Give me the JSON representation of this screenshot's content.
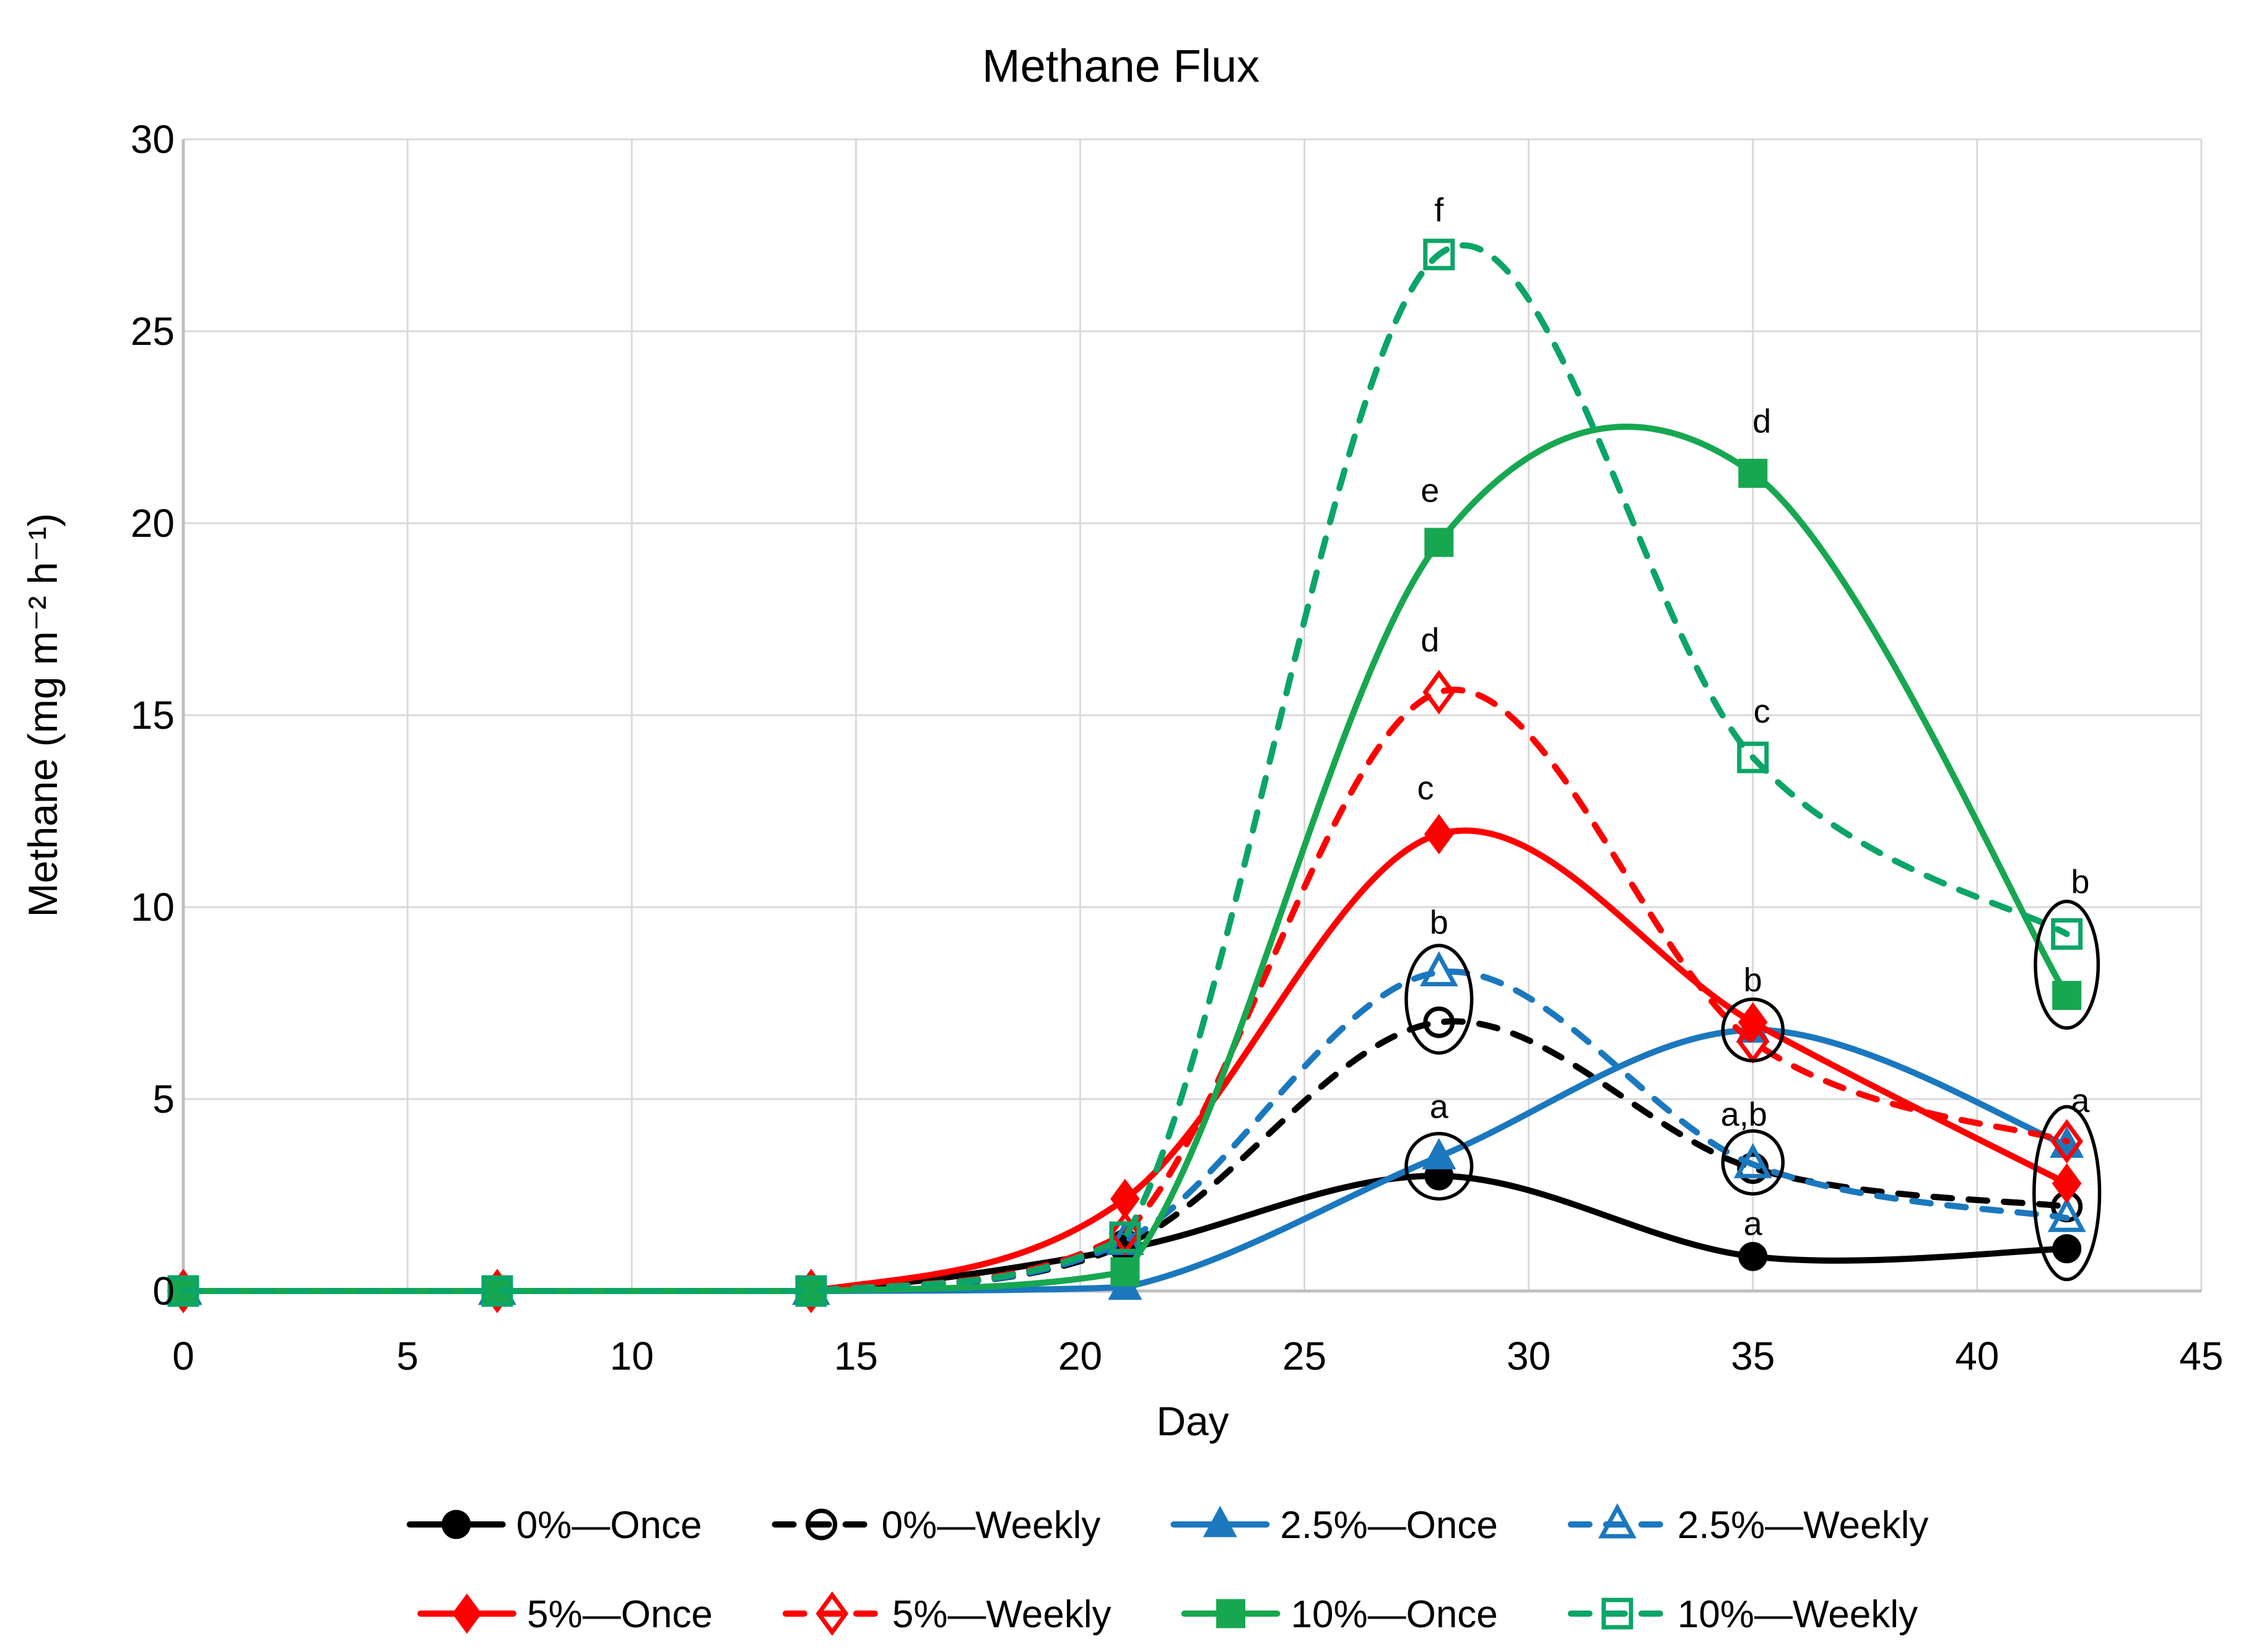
{
  "title": "Methane Flux",
  "axes": {
    "x": {
      "label": "Day",
      "min": 0,
      "max": 45,
      "ticks": [
        0,
        5,
        10,
        15,
        20,
        25,
        30,
        35,
        40,
        45
      ]
    },
    "y": {
      "label": "Methane (mg m⁻² h⁻¹)",
      "min": 0,
      "max": 30,
      "ticks": [
        0,
        5,
        10,
        15,
        20,
        25,
        30
      ]
    }
  },
  "style": {
    "gridline_color": "#D9D9D9",
    "axis_color": "#BFBFBF",
    "annotation_color": "#000000"
  },
  "chart_data": {
    "type": "line",
    "title": "Methane Flux",
    "xlabel": "Day",
    "ylabel": "Methane (mg m⁻² h⁻¹)",
    "xlim": [
      0,
      45
    ],
    "ylim": [
      0,
      30
    ],
    "grid": true,
    "x": [
      0,
      7,
      14,
      21,
      28,
      35,
      42
    ],
    "series": [
      {
        "name": "0%—Once",
        "color": "#000000",
        "line": "solid",
        "marker": "circle",
        "marker_fill": "filled",
        "values": [
          0,
          0,
          0,
          1.1,
          3.0,
          0.9,
          1.1
        ]
      },
      {
        "name": "0%—Weekly",
        "color": "#000000",
        "line": "dashed",
        "marker": "circle",
        "marker_fill": "open",
        "values": [
          0,
          0,
          0,
          1.2,
          7.0,
          3.2,
          2.2
        ]
      },
      {
        "name": "2.5%—Once",
        "color": "#1B78BE",
        "line": "solid",
        "marker": "triangle",
        "marker_fill": "filled",
        "values": [
          0,
          0,
          0,
          0.1,
          3.5,
          6.8,
          3.8
        ]
      },
      {
        "name": "2.5%—Weekly",
        "color": "#1B78BE",
        "line": "dashed",
        "marker": "triangle",
        "marker_fill": "open",
        "values": [
          0,
          0,
          0,
          1.3,
          8.3,
          3.3,
          1.9
        ]
      },
      {
        "name": "5%—Once",
        "color": "#FF0000",
        "line": "solid",
        "marker": "diamond",
        "marker_fill": "filled",
        "values": [
          0,
          0,
          0,
          2.4,
          11.9,
          7.0,
          2.8
        ]
      },
      {
        "name": "5%—Weekly",
        "color": "#FF0000",
        "line": "dashed",
        "marker": "diamond",
        "marker_fill": "open",
        "values": [
          0,
          0,
          0,
          1.5,
          15.6,
          6.5,
          3.9
        ]
      },
      {
        "name": "10%—Once",
        "color": "#17A750",
        "line": "solid",
        "marker": "square",
        "marker_fill": "filled",
        "values": [
          0,
          0,
          0,
          0.5,
          19.5,
          21.3,
          7.7
        ]
      },
      {
        "name": "10%—Weekly",
        "color": "#0BA567",
        "line": "dashed",
        "marker": "square",
        "marker_fill": "open",
        "values": [
          0,
          0,
          0,
          1.4,
          27.0,
          13.9,
          9.3
        ]
      }
    ],
    "stat_labels": [
      {
        "text": "f",
        "day": 28.0,
        "value": 28.15
      },
      {
        "text": "e",
        "day": 27.8,
        "value": 20.85
      },
      {
        "text": "d",
        "day": 27.8,
        "value": 16.95
      },
      {
        "text": "c",
        "day": 27.7,
        "value": 13.1
      },
      {
        "text": "b",
        "day": 28.0,
        "value": 9.6
      },
      {
        "text": "a",
        "day": 28.0,
        "value": 4.8
      },
      {
        "text": "d",
        "day": 35.2,
        "value": 22.65
      },
      {
        "text": "c",
        "day": 35.2,
        "value": 15.1
      },
      {
        "text": "b",
        "day": 35.0,
        "value": 8.1
      },
      {
        "text": "a,b",
        "day": 34.8,
        "value": 4.6
      },
      {
        "text": "a",
        "day": 35.0,
        "value": 1.75
      },
      {
        "text": "b",
        "day": 42.3,
        "value": 10.65
      },
      {
        "text": "a",
        "day": 42.3,
        "value": 4.95
      }
    ],
    "cluster_ellipses": [
      {
        "day": 28,
        "value": 7.6,
        "rx_days": 0.73,
        "ry_units": 1.4
      },
      {
        "day": 28,
        "value": 3.25,
        "rx_days": 0.73,
        "ry_units": 0.85
      },
      {
        "day": 35,
        "value": 6.8,
        "rx_days": 0.67,
        "ry_units": 0.8
      },
      {
        "day": 35,
        "value": 3.35,
        "rx_days": 0.67,
        "ry_units": 0.82
      },
      {
        "day": 42,
        "value": 8.5,
        "rx_days": 0.7,
        "ry_units": 1.65
      },
      {
        "day": 42,
        "value": 2.55,
        "rx_days": 0.73,
        "ry_units": 2.25
      }
    ],
    "legend": {
      "position": "bottom",
      "rows": [
        [
          0,
          1,
          2,
          3
        ],
        [
          4,
          5,
          6,
          7
        ]
      ]
    }
  }
}
